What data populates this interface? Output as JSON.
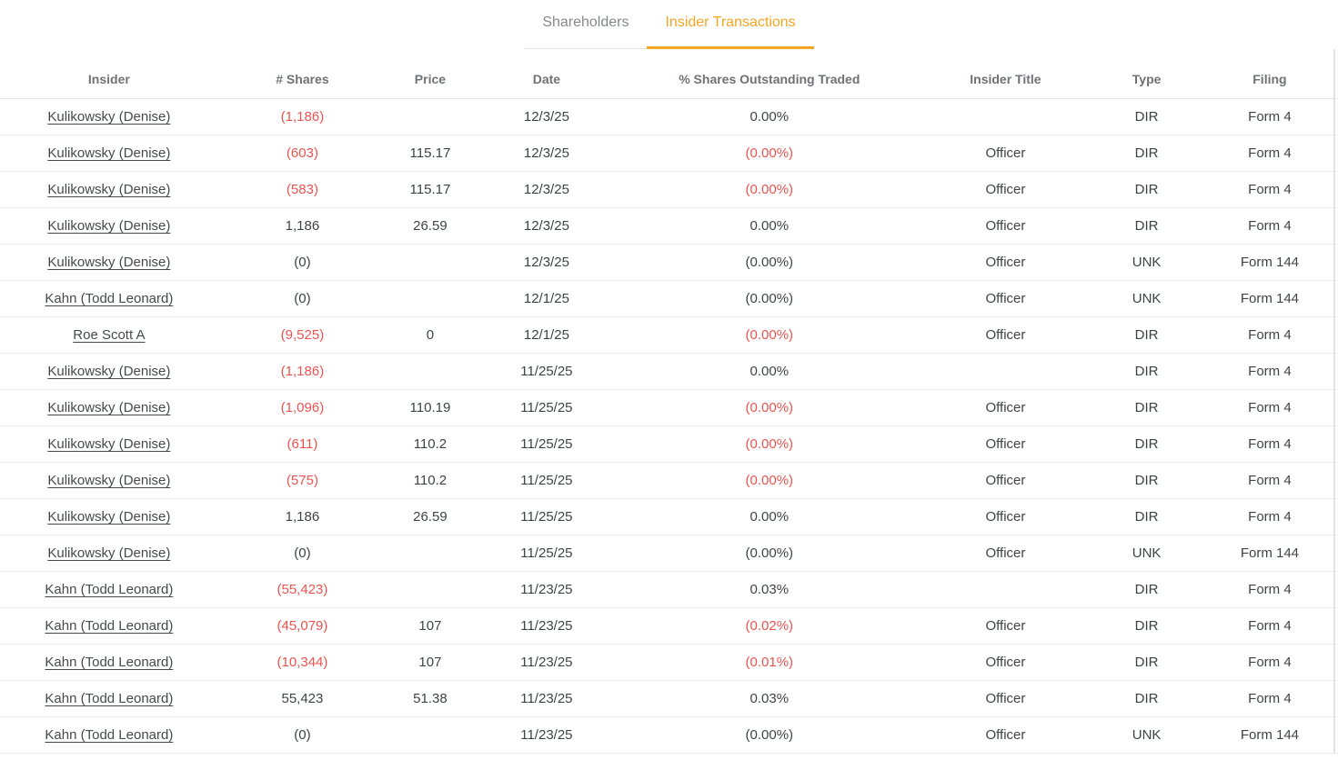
{
  "tabs": [
    {
      "label": "Shareholders",
      "active": false
    },
    {
      "label": "Insider Transactions",
      "active": true
    }
  ],
  "columns": [
    "Insider",
    "# Shares",
    "Price",
    "Date",
    "% Shares Outstanding Traded",
    "Insider Title",
    "Type",
    "Filing"
  ],
  "colors": {
    "accent_orange": "#F5A623",
    "negative_red": "#EF5350"
  },
  "table": {
    "rows": [
      {
        "insider": "Kulikowsky (Denise)",
        "shares": "(1,186)",
        "shares_red": true,
        "price": "",
        "date": "12/3/25",
        "pct": "0.00%",
        "pct_red": false,
        "title": "",
        "type": "DIR",
        "filing": "Form 4"
      },
      {
        "insider": "Kulikowsky (Denise)",
        "shares": "(603)",
        "shares_red": true,
        "price": "115.17",
        "date": "12/3/25",
        "pct": "(0.00%)",
        "pct_red": true,
        "title": "Officer",
        "type": "DIR",
        "filing": "Form 4"
      },
      {
        "insider": "Kulikowsky (Denise)",
        "shares": "(583)",
        "shares_red": true,
        "price": "115.17",
        "date": "12/3/25",
        "pct": "(0.00%)",
        "pct_red": true,
        "title": "Officer",
        "type": "DIR",
        "filing": "Form 4"
      },
      {
        "insider": "Kulikowsky (Denise)",
        "shares": "1,186",
        "shares_red": false,
        "price": "26.59",
        "date": "12/3/25",
        "pct": "0.00%",
        "pct_red": false,
        "title": "Officer",
        "type": "DIR",
        "filing": "Form 4"
      },
      {
        "insider": "Kulikowsky (Denise)",
        "shares": "(0)",
        "shares_red": false,
        "price": "",
        "date": "12/3/25",
        "pct": "(0.00%)",
        "pct_red": false,
        "title": "Officer",
        "type": "UNK",
        "filing": "Form 144"
      },
      {
        "insider": "Kahn (Todd Leonard)",
        "shares": "(0)",
        "shares_red": false,
        "price": "",
        "date": "12/1/25",
        "pct": "(0.00%)",
        "pct_red": false,
        "title": "Officer",
        "type": "UNK",
        "filing": "Form 144"
      },
      {
        "insider": "Roe Scott A",
        "shares": "(9,525)",
        "shares_red": true,
        "price": "0",
        "date": "12/1/25",
        "pct": "(0.00%)",
        "pct_red": true,
        "title": "Officer",
        "type": "DIR",
        "filing": "Form 4"
      },
      {
        "insider": "Kulikowsky (Denise)",
        "shares": "(1,186)",
        "shares_red": true,
        "price": "",
        "date": "11/25/25",
        "pct": "0.00%",
        "pct_red": false,
        "title": "",
        "type": "DIR",
        "filing": "Form 4"
      },
      {
        "insider": "Kulikowsky (Denise)",
        "shares": "(1,096)",
        "shares_red": true,
        "price": "110.19",
        "date": "11/25/25",
        "pct": "(0.00%)",
        "pct_red": true,
        "title": "Officer",
        "type": "DIR",
        "filing": "Form 4"
      },
      {
        "insider": "Kulikowsky (Denise)",
        "shares": "(611)",
        "shares_red": true,
        "price": "110.2",
        "date": "11/25/25",
        "pct": "(0.00%)",
        "pct_red": true,
        "title": "Officer",
        "type": "DIR",
        "filing": "Form 4"
      },
      {
        "insider": "Kulikowsky (Denise)",
        "shares": "(575)",
        "shares_red": true,
        "price": "110.2",
        "date": "11/25/25",
        "pct": "(0.00%)",
        "pct_red": true,
        "title": "Officer",
        "type": "DIR",
        "filing": "Form 4"
      },
      {
        "insider": "Kulikowsky (Denise)",
        "shares": "1,186",
        "shares_red": false,
        "price": "26.59",
        "date": "11/25/25",
        "pct": "0.00%",
        "pct_red": false,
        "title": "Officer",
        "type": "DIR",
        "filing": "Form 4"
      },
      {
        "insider": "Kulikowsky (Denise)",
        "shares": "(0)",
        "shares_red": false,
        "price": "",
        "date": "11/25/25",
        "pct": "(0.00%)",
        "pct_red": false,
        "title": "Officer",
        "type": "UNK",
        "filing": "Form 144"
      },
      {
        "insider": "Kahn (Todd Leonard)",
        "shares": "(55,423)",
        "shares_red": true,
        "price": "",
        "date": "11/23/25",
        "pct": "0.03%",
        "pct_red": false,
        "title": "",
        "type": "DIR",
        "filing": "Form 4"
      },
      {
        "insider": "Kahn (Todd Leonard)",
        "shares": "(45,079)",
        "shares_red": true,
        "price": "107",
        "date": "11/23/25",
        "pct": "(0.02%)",
        "pct_red": true,
        "title": "Officer",
        "type": "DIR",
        "filing": "Form 4"
      },
      {
        "insider": "Kahn (Todd Leonard)",
        "shares": "(10,344)",
        "shares_red": true,
        "price": "107",
        "date": "11/23/25",
        "pct": "(0.01%)",
        "pct_red": true,
        "title": "Officer",
        "type": "DIR",
        "filing": "Form 4"
      },
      {
        "insider": "Kahn (Todd Leonard)",
        "shares": "55,423",
        "shares_red": false,
        "price": "51.38",
        "date": "11/23/25",
        "pct": "0.03%",
        "pct_red": false,
        "title": "Officer",
        "type": "DIR",
        "filing": "Form 4"
      },
      {
        "insider": "Kahn (Todd Leonard)",
        "shares": "(0)",
        "shares_red": false,
        "price": "",
        "date": "11/23/25",
        "pct": "(0.00%)",
        "pct_red": false,
        "title": "Officer",
        "type": "UNK",
        "filing": "Form 144"
      }
    ]
  }
}
